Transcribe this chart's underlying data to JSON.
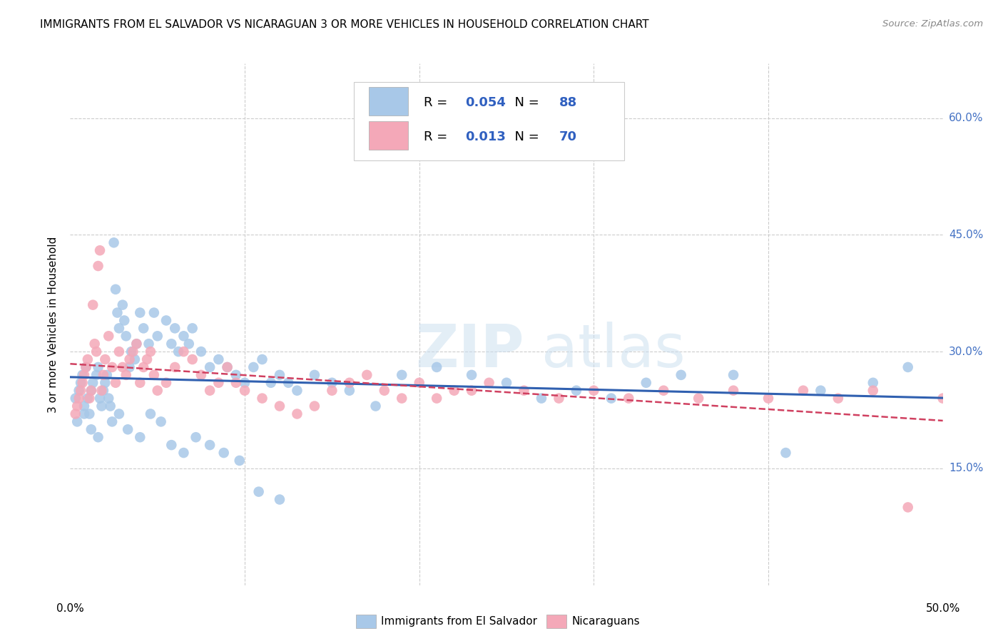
{
  "title": "IMMIGRANTS FROM EL SALVADOR VS NICARAGUAN 3 OR MORE VEHICLES IN HOUSEHOLD CORRELATION CHART",
  "source": "Source: ZipAtlas.com",
  "ylabel": "3 or more Vehicles in Household",
  "yticks_labels": [
    "60.0%",
    "45.0%",
    "30.0%",
    "15.0%"
  ],
  "ytick_vals": [
    0.6,
    0.45,
    0.3,
    0.15
  ],
  "xlim": [
    0.0,
    0.5
  ],
  "ylim": [
    0.0,
    0.67
  ],
  "legend_label1": "Immigrants from El Salvador",
  "legend_label2": "Nicaraguans",
  "r1": "0.054",
  "n1": "88",
  "r2": "0.013",
  "n2": "70",
  "color_blue": "#a8c8e8",
  "color_pink": "#f4a8b8",
  "line_blue": "#3060b0",
  "line_pink": "#d04060",
  "blue_x": [
    0.003,
    0.005,
    0.006,
    0.007,
    0.008,
    0.009,
    0.01,
    0.011,
    0.012,
    0.013,
    0.015,
    0.016,
    0.017,
    0.018,
    0.019,
    0.02,
    0.021,
    0.022,
    0.023,
    0.025,
    0.026,
    0.027,
    0.028,
    0.03,
    0.031,
    0.032,
    0.034,
    0.035,
    0.037,
    0.038,
    0.04,
    0.042,
    0.045,
    0.048,
    0.05,
    0.055,
    0.058,
    0.06,
    0.062,
    0.065,
    0.068,
    0.07,
    0.075,
    0.08,
    0.085,
    0.09,
    0.095,
    0.1,
    0.105,
    0.11,
    0.115,
    0.12,
    0.125,
    0.13,
    0.14,
    0.15,
    0.16,
    0.175,
    0.19,
    0.21,
    0.23,
    0.25,
    0.27,
    0.29,
    0.31,
    0.33,
    0.35,
    0.38,
    0.41,
    0.43,
    0.46,
    0.48,
    0.004,
    0.008,
    0.012,
    0.016,
    0.024,
    0.028,
    0.033,
    0.04,
    0.046,
    0.052,
    0.058,
    0.065,
    0.072,
    0.08,
    0.088,
    0.097,
    0.108,
    0.12
  ],
  "blue_y": [
    0.24,
    0.25,
    0.26,
    0.27,
    0.23,
    0.28,
    0.24,
    0.22,
    0.25,
    0.26,
    0.27,
    0.28,
    0.24,
    0.23,
    0.25,
    0.26,
    0.27,
    0.24,
    0.23,
    0.44,
    0.38,
    0.35,
    0.33,
    0.36,
    0.34,
    0.32,
    0.28,
    0.3,
    0.29,
    0.31,
    0.35,
    0.33,
    0.31,
    0.35,
    0.32,
    0.34,
    0.31,
    0.33,
    0.3,
    0.32,
    0.31,
    0.33,
    0.3,
    0.28,
    0.29,
    0.28,
    0.27,
    0.26,
    0.28,
    0.29,
    0.26,
    0.27,
    0.26,
    0.25,
    0.27,
    0.26,
    0.25,
    0.23,
    0.27,
    0.28,
    0.27,
    0.26,
    0.24,
    0.25,
    0.24,
    0.26,
    0.27,
    0.27,
    0.17,
    0.25,
    0.26,
    0.28,
    0.21,
    0.22,
    0.2,
    0.19,
    0.21,
    0.22,
    0.2,
    0.19,
    0.22,
    0.21,
    0.18,
    0.17,
    0.19,
    0.18,
    0.17,
    0.16,
    0.12,
    0.11
  ],
  "pink_x": [
    0.003,
    0.004,
    0.005,
    0.006,
    0.007,
    0.008,
    0.009,
    0.01,
    0.011,
    0.012,
    0.013,
    0.014,
    0.015,
    0.016,
    0.017,
    0.018,
    0.019,
    0.02,
    0.022,
    0.024,
    0.026,
    0.028,
    0.03,
    0.032,
    0.034,
    0.036,
    0.038,
    0.04,
    0.042,
    0.044,
    0.046,
    0.048,
    0.05,
    0.055,
    0.06,
    0.065,
    0.07,
    0.075,
    0.08,
    0.085,
    0.09,
    0.095,
    0.1,
    0.11,
    0.12,
    0.13,
    0.14,
    0.15,
    0.16,
    0.17,
    0.18,
    0.19,
    0.2,
    0.21,
    0.22,
    0.23,
    0.24,
    0.26,
    0.28,
    0.3,
    0.32,
    0.34,
    0.36,
    0.38,
    0.4,
    0.42,
    0.44,
    0.46,
    0.48,
    0.5
  ],
  "pink_y": [
    0.22,
    0.23,
    0.24,
    0.25,
    0.26,
    0.27,
    0.28,
    0.29,
    0.24,
    0.25,
    0.36,
    0.31,
    0.3,
    0.41,
    0.43,
    0.25,
    0.27,
    0.29,
    0.32,
    0.28,
    0.26,
    0.3,
    0.28,
    0.27,
    0.29,
    0.3,
    0.31,
    0.26,
    0.28,
    0.29,
    0.3,
    0.27,
    0.25,
    0.26,
    0.28,
    0.3,
    0.29,
    0.27,
    0.25,
    0.26,
    0.28,
    0.26,
    0.25,
    0.24,
    0.23,
    0.22,
    0.23,
    0.25,
    0.26,
    0.27,
    0.25,
    0.24,
    0.26,
    0.24,
    0.25,
    0.25,
    0.26,
    0.25,
    0.24,
    0.25,
    0.24,
    0.25,
    0.24,
    0.25,
    0.24,
    0.25,
    0.24,
    0.25,
    0.1,
    0.24
  ]
}
